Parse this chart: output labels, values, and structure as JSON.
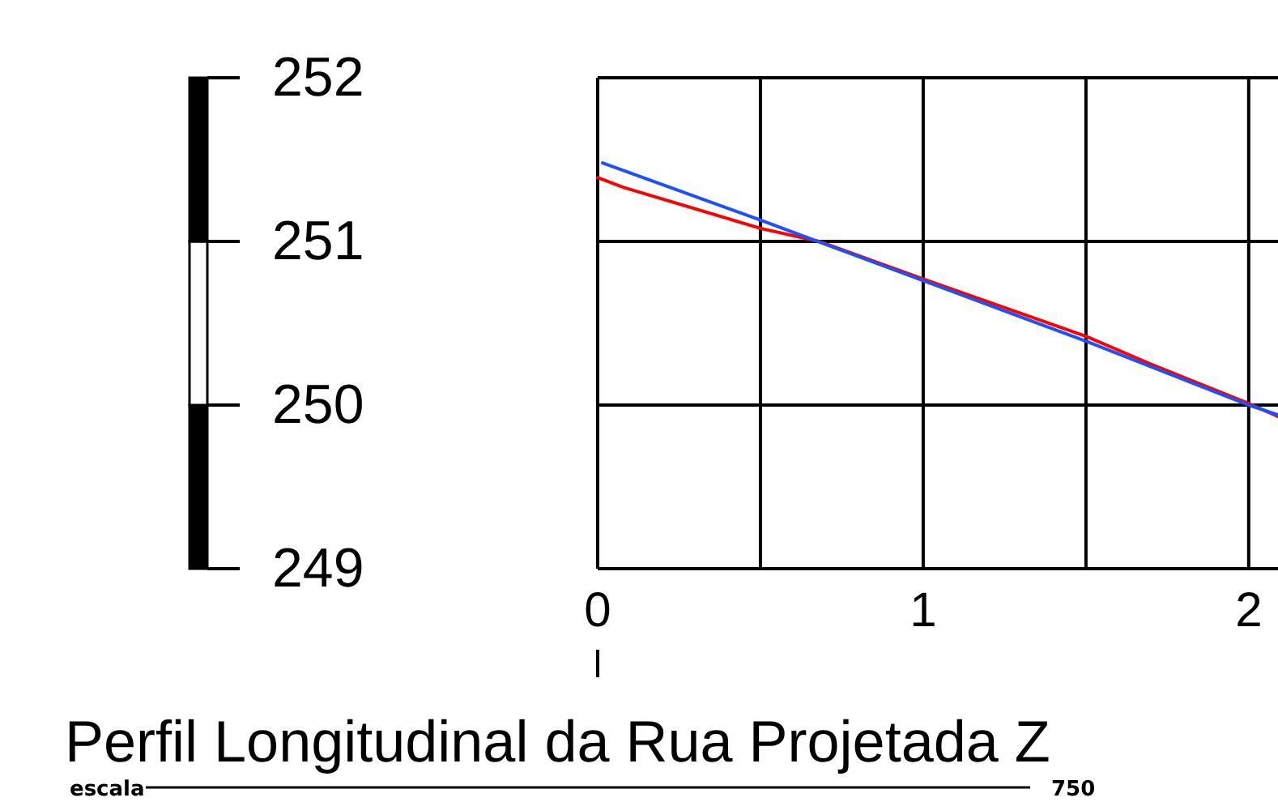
{
  "chart_data": {
    "type": "line",
    "title": "Perfil Longitudinal da Rua Projetada Z",
    "annotations": [
      "escala",
      "750"
    ],
    "xlim": [
      0,
      2.09
    ],
    "xticks": [
      0,
      {
        "value": 0.5,
        "label": null
      },
      1,
      {
        "value": 1.5,
        "label": null
      },
      2
    ],
    "ylim": [
      249,
      252
    ],
    "yticks": [
      249,
      250,
      251,
      252
    ],
    "grid": true,
    "series": [
      {
        "color": "#ff0000",
        "x": [
          0,
          0.08,
          0.5,
          0.68,
          1,
          1.5,
          1.7,
          2,
          2.09
        ],
        "values": [
          251.39,
          251.33,
          251.08,
          251.0,
          250.77,
          250.42,
          250.25,
          250.01,
          249.93
        ]
      },
      {
        "color": "#1f4fff",
        "x": [
          0.015,
          0.5,
          1,
          1.5,
          2,
          2.09
        ],
        "values": [
          251.48,
          251.13,
          250.76,
          250.39,
          250.0,
          249.94
        ]
      }
    ]
  }
}
